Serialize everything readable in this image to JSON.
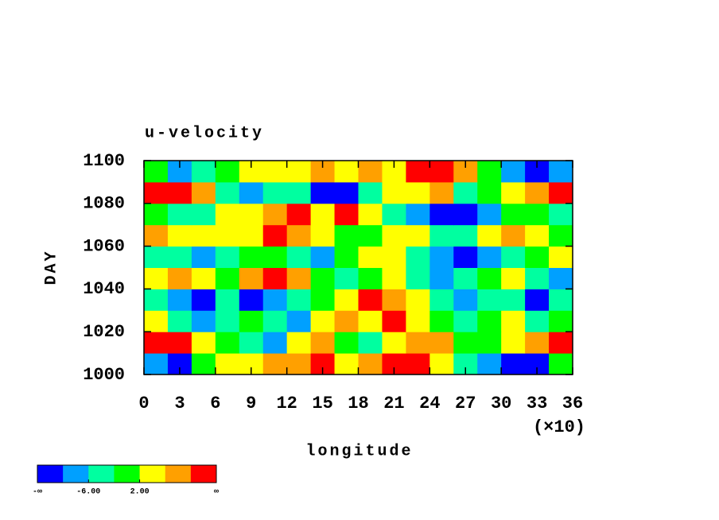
{
  "chart_data": {
    "type": "contour",
    "title": "u-velocity",
    "xlabel": "longitude",
    "x_multiplier": "(×10)",
    "ylabel": "DAY",
    "xlim": [
      0,
      36
    ],
    "xticks": [
      0,
      3,
      6,
      9,
      12,
      15,
      18,
      21,
      24,
      27,
      30,
      33,
      36
    ],
    "ylim": [
      1000,
      1100
    ],
    "yticks": [
      1000,
      1020,
      1040,
      1060,
      1080,
      1100
    ],
    "x": [
      1,
      3,
      5,
      7,
      9,
      11,
      13,
      15,
      17,
      19,
      21,
      23,
      25,
      27,
      29,
      31,
      33,
      35
    ],
    "y": [
      1005,
      1015,
      1025,
      1035,
      1045,
      1055,
      1065,
      1075,
      1085,
      1095
    ],
    "z": [
      [
        -7,
        -11,
        0,
        4,
        5,
        7,
        8,
        11,
        4,
        7,
        12,
        12,
        3,
        -3,
        -7,
        -12,
        -11,
        0
      ],
      [
        12,
        11,
        5,
        0,
        -3,
        -7,
        4,
        7,
        1,
        -4,
        3,
        8,
        6,
        -2,
        0,
        4,
        8,
        12
      ],
      [
        3,
        -3,
        -8,
        -4,
        0,
        -3,
        -7,
        2,
        6,
        5,
        10,
        5,
        -2,
        -5,
        0,
        2,
        -3,
        0
      ],
      [
        -4,
        -8,
        -12,
        -6,
        -11,
        -8,
        -3,
        0,
        4,
        11,
        8,
        5,
        -3,
        -7,
        -4,
        -6,
        -11,
        -4
      ],
      [
        5,
        8,
        3,
        0,
        8,
        12,
        6,
        0,
        -5,
        -2,
        3,
        -4,
        -8,
        -3,
        -1,
        5,
        -3,
        -10
      ],
      [
        -3,
        -6,
        -9,
        -4,
        -2,
        0,
        -3,
        -7,
        1,
        5,
        4,
        -6,
        -10,
        -12,
        -9,
        -6,
        0,
        3
      ],
      [
        9,
        2,
        5,
        3,
        4,
        11,
        7,
        3,
        0,
        -2,
        5,
        3,
        -5,
        -3,
        4,
        7,
        5,
        0
      ],
      [
        -1,
        -4,
        -3,
        2,
        5,
        6,
        11,
        5,
        10,
        3,
        -4,
        -8,
        -11,
        -12,
        -7,
        -2,
        0,
        -5
      ],
      [
        12,
        11,
        7,
        -3,
        -8,
        -4,
        -6,
        -11,
        -12,
        -3,
        3,
        4,
        6,
        -4,
        -2,
        3,
        8,
        11
      ],
      [
        0,
        -7,
        -3,
        0,
        3,
        2,
        4,
        8,
        5,
        7,
        4,
        12,
        10,
        6,
        0,
        -10,
        -12,
        -8
      ]
    ],
    "levels": [
      -10,
      -6,
      -2,
      2,
      6,
      10
    ],
    "colors": [
      "#0000ff",
      "#00a0ff",
      "#00ffa0",
      "#00ff00",
      "#ffff00",
      "#ffa000",
      "#ff0000"
    ],
    "colorbar_ticks": [
      {
        "value": -6,
        "label": "-6.00"
      },
      {
        "value": 2,
        "label": "2.00"
      }
    ],
    "colorbar_end_labels": [
      "-∞",
      "∞"
    ]
  }
}
